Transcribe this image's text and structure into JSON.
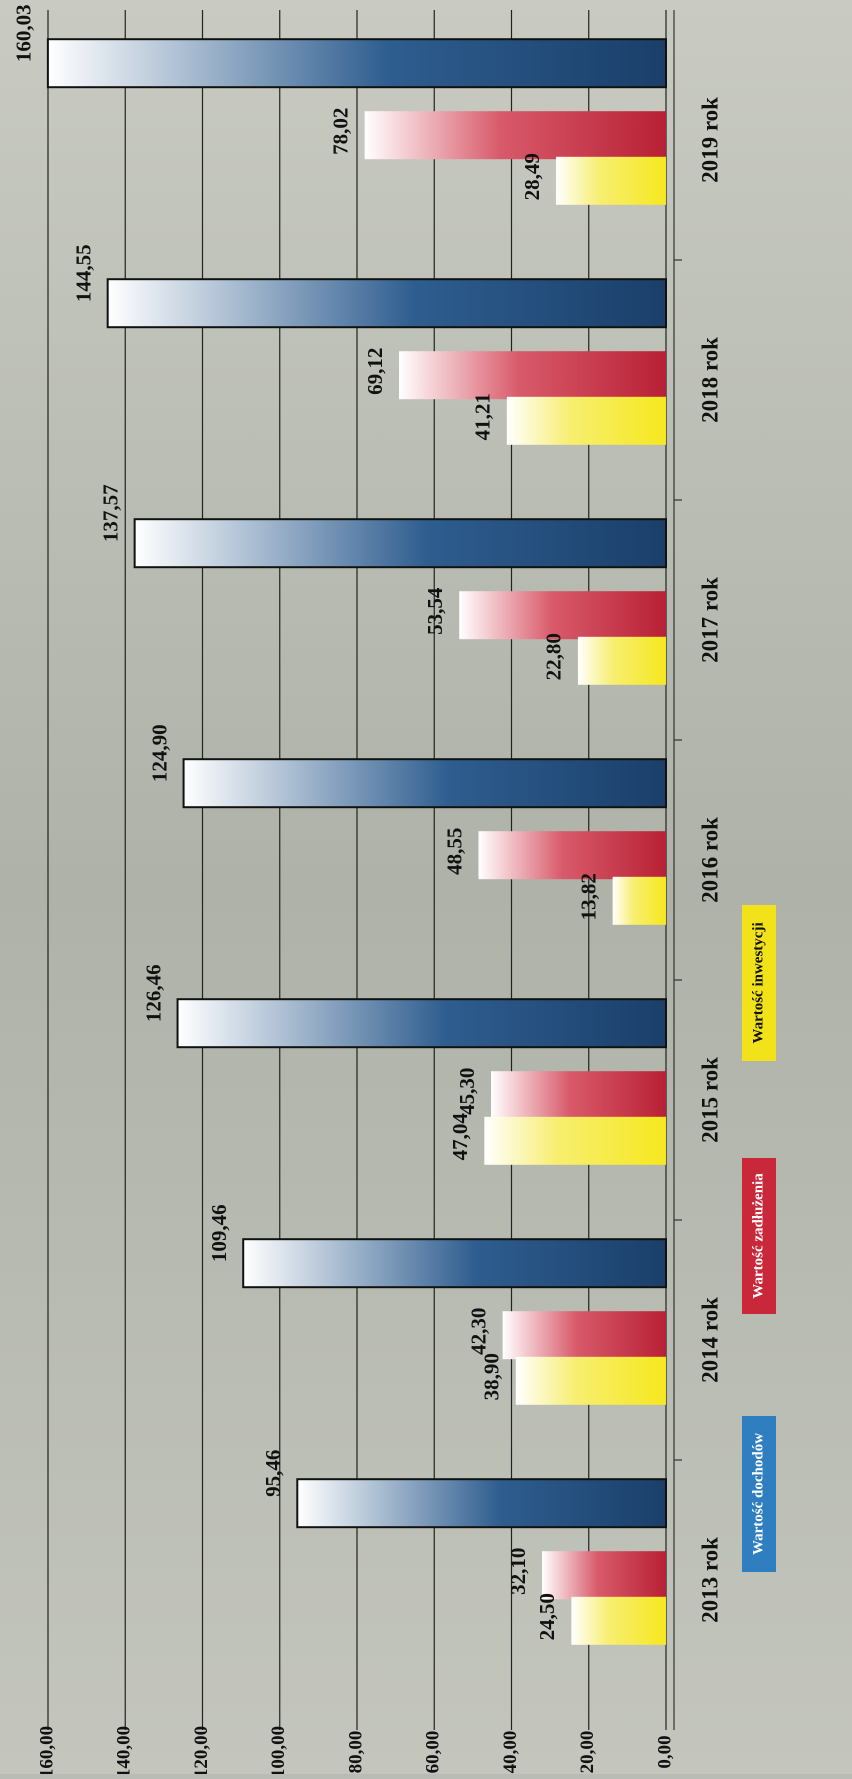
{
  "colors": {
    "income": "#1d4a7a",
    "debt": "#c8283a",
    "investment": "#f2e21a",
    "legend_income": "#2f7fc0",
    "background": "#b9bcb4",
    "grid": "#222222"
  },
  "chart_data": {
    "type": "bar",
    "orientation": "rotated",
    "categories": [
      "2013 rok",
      "2014 rok",
      "2015 rok",
      "2016 rok",
      "2017 rok",
      "2018 rok",
      "2019 rok"
    ],
    "series": [
      {
        "name": "Wartość dochodów",
        "values": [
          95.46,
          109.46,
          126.46,
          124.9,
          137.57,
          144.55,
          160.03
        ],
        "labels": [
          "95,46",
          "109,46",
          "126,46",
          "124,90",
          "137,57",
          "144,55",
          "160,03"
        ]
      },
      {
        "name": "Wartość zadłużenia",
        "values": [
          32.1,
          42.3,
          45.3,
          48.55,
          53.54,
          69.12,
          78.02
        ],
        "labels": [
          "32,10",
          "42,30",
          "45,30",
          "48,55",
          "53,54",
          "69,12",
          "78,02"
        ]
      },
      {
        "name": "Wartość inwestycji",
        "values": [
          24.5,
          38.9,
          47.04,
          13.82,
          22.8,
          41.21,
          28.49
        ],
        "labels": [
          "24,50",
          "38,90",
          "47,04",
          "13,82",
          "22,80",
          "41,21",
          "28,49"
        ]
      }
    ],
    "ylim": [
      0,
      160
    ],
    "yticks": [
      "0,00",
      "20,00",
      "40,00",
      "60,00",
      "80,00",
      "100,00",
      "120,00",
      "140,00",
      "160,00"
    ],
    "grid": true,
    "legend_position": "bottom"
  }
}
